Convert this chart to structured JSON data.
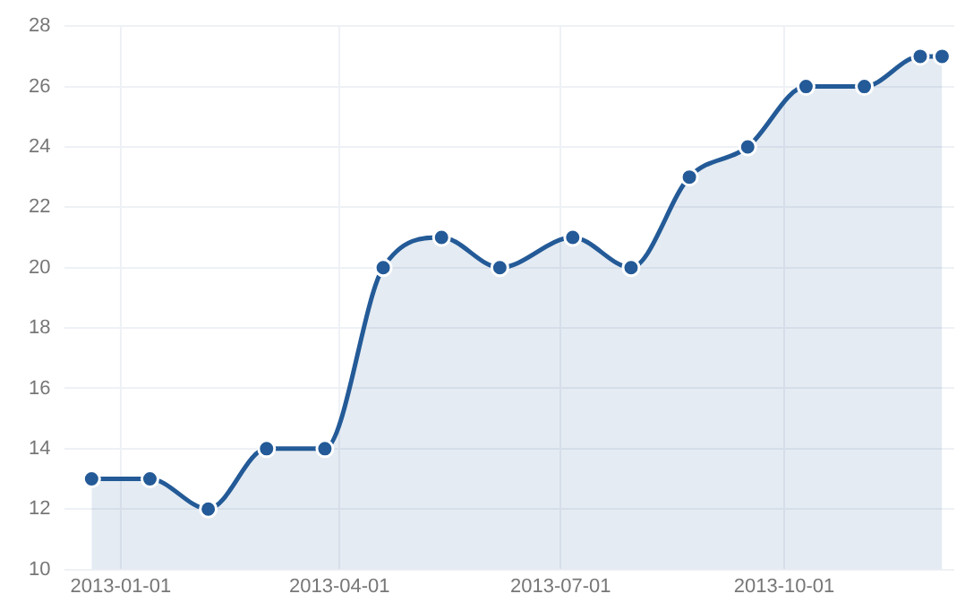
{
  "chart_data": {
    "type": "area",
    "x": [
      "2012-12-20",
      "2013-01-13",
      "2013-02-06",
      "2013-03-02",
      "2013-03-26",
      "2013-04-19",
      "2013-05-13",
      "2013-06-06",
      "2013-07-06",
      "2013-07-30",
      "2013-08-23",
      "2013-09-16",
      "2013-10-10",
      "2013-11-03",
      "2013-11-26",
      "2013-12-05"
    ],
    "series": [
      {
        "color": "#235a97",
        "values": [
          13,
          13,
          12,
          14,
          14,
          20,
          21,
          20,
          21,
          20,
          23,
          24,
          26,
          26,
          27,
          27
        ]
      }
    ],
    "xlim": [
      "2012-12-09",
      "2013-12-10"
    ],
    "xticks": [
      "2013-01-01",
      "2013-04-01",
      "2013-07-01",
      "2013-10-01"
    ],
    "ylim": [
      10,
      28
    ],
    "yticks": [
      10,
      12,
      14,
      16,
      18,
      20,
      22,
      24,
      26,
      28
    ],
    "grid": true,
    "legend": false,
    "marker": "circle"
  }
}
